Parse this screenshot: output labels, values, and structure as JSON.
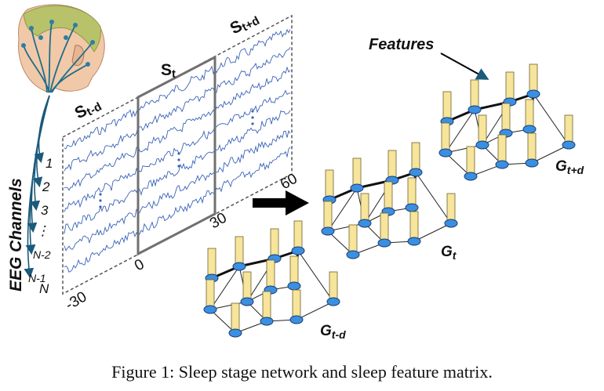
{
  "eeg_panel": {
    "channels_label": "EEG Channels",
    "channel_numbers": [
      "1",
      "2",
      "3",
      "⋮",
      "N-2",
      "N-1",
      "N"
    ],
    "segments": [
      {
        "base": "S",
        "sub": "t-d"
      },
      {
        "base": "S",
        "sub": "t"
      },
      {
        "base": "S",
        "sub": "t+d"
      }
    ],
    "time_ticks": [
      "-30",
      "0",
      "30",
      "60"
    ]
  },
  "graph_panel": {
    "features_label": "Features",
    "graphs": [
      {
        "base": "G",
        "sub": "t-d"
      },
      {
        "base": "G",
        "sub": "t"
      },
      {
        "base": "G",
        "sub": "t+d"
      }
    ]
  },
  "colors": {
    "signal": "#3a63b8",
    "node_fill": "#3b8fe0",
    "node_stroke": "#1b3f78",
    "feature_bar": "#f6e59a",
    "feature_bar_stroke": "#6e6030",
    "frame": "#777777"
  },
  "caption": "Figure 1: Sleep stage network and sleep feature matrix."
}
